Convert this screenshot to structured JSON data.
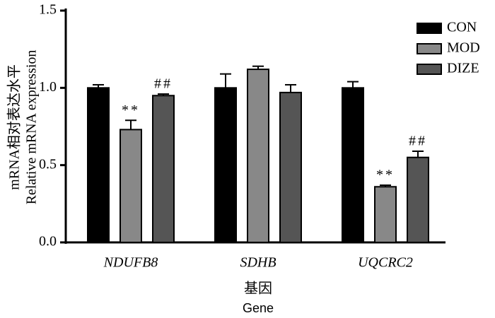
{
  "chart_data": {
    "type": "bar",
    "categories": [
      "NDUFB8",
      "SDHB",
      "UQCRC2"
    ],
    "series": [
      {
        "name": "CON",
        "color": "#000000",
        "values": [
          1.0,
          1.0,
          1.0
        ],
        "errors": [
          0.02,
          0.09,
          0.04
        ],
        "annotations": [
          null,
          null,
          null
        ]
      },
      {
        "name": "MOD",
        "color": "#888888",
        "values": [
          0.73,
          1.12,
          0.36
        ],
        "errors": [
          0.06,
          0.02,
          0.01
        ],
        "annotations": [
          "**",
          null,
          "**"
        ]
      },
      {
        "name": "DIZE",
        "color": "#555555",
        "values": [
          0.95,
          0.97,
          0.55
        ],
        "errors": [
          0.01,
          0.05,
          0.04
        ],
        "annotations": [
          "##",
          null,
          "##"
        ]
      }
    ],
    "ylabel": [
      "mRNA相对表达水平",
      "Relative mRNA expression"
    ],
    "xlabel": [
      "基因",
      "Gene"
    ],
    "ylim": [
      0,
      1.5
    ],
    "yticks": [
      {
        "value": 0,
        "label": "0.0"
      },
      0.5,
      {
        "value": 1,
        "label": "1.0"
      },
      1.5
    ],
    "grid": false,
    "legend": "top-right"
  }
}
